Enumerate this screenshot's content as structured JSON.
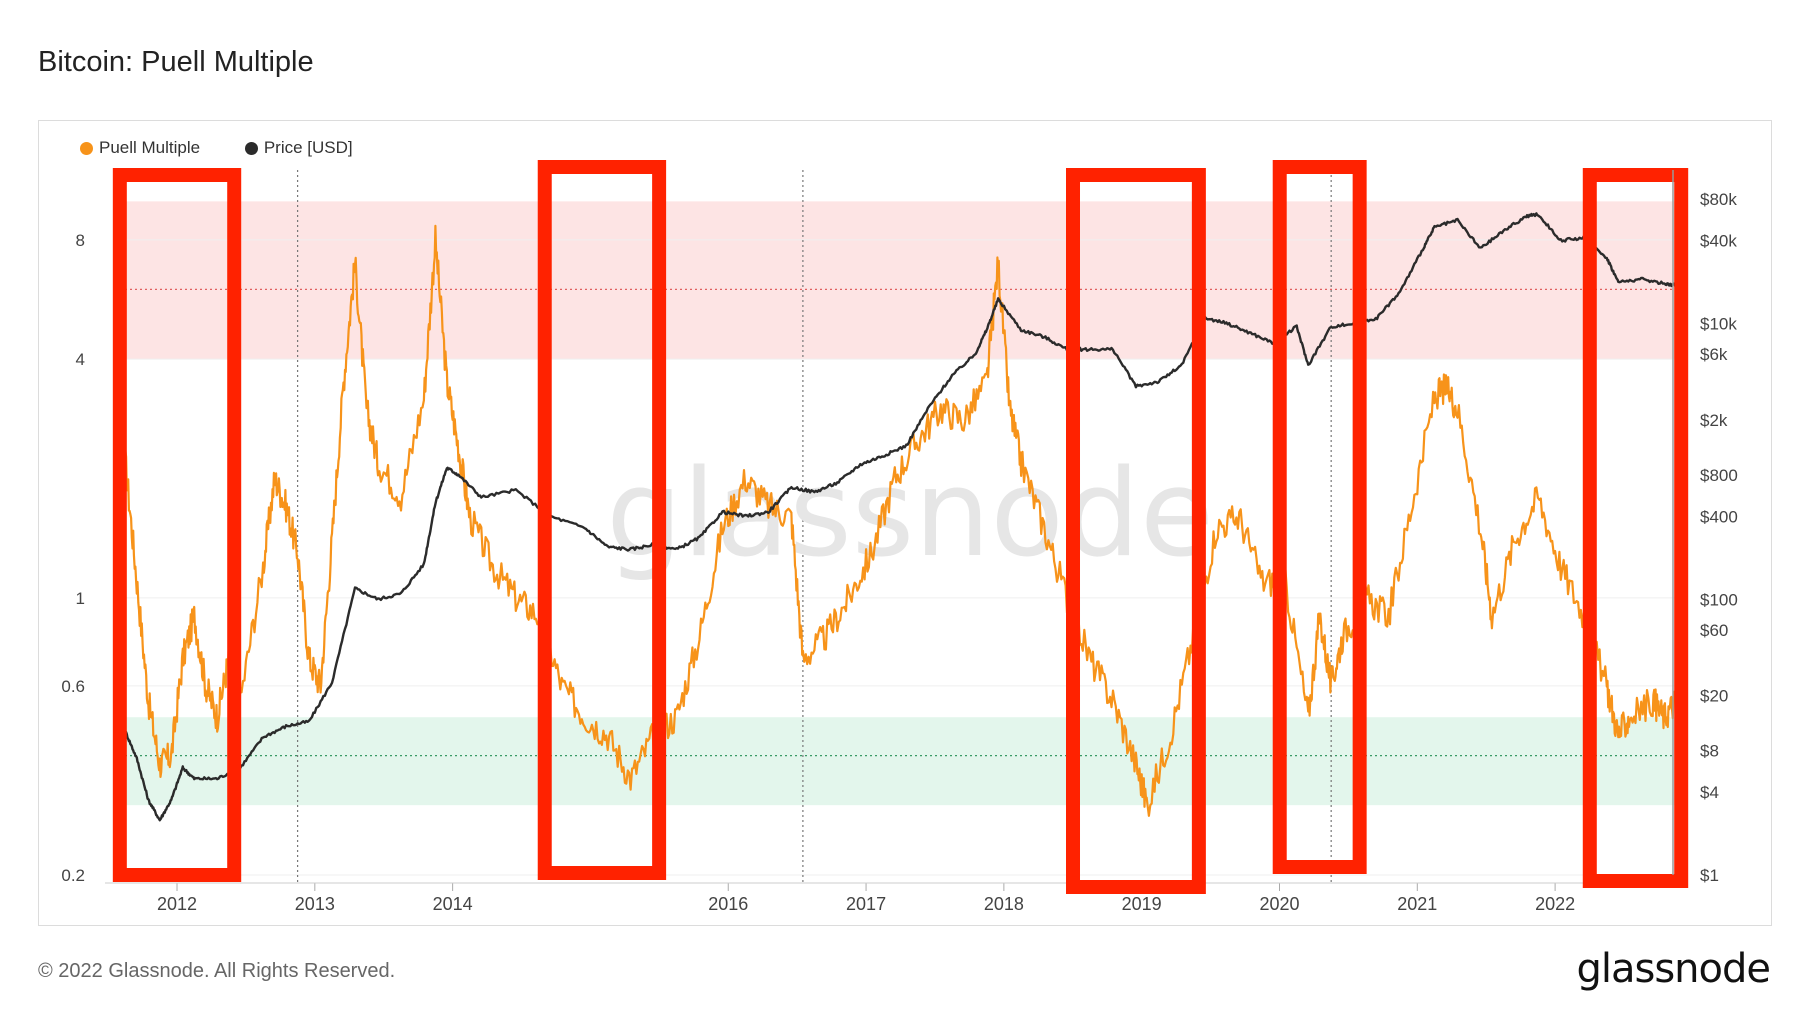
{
  "title": "Bitcoin: Puell Multiple",
  "footer": {
    "copyright": "© 2022 Glassnode. All Rights Reserved.",
    "logo": "glassnode"
  },
  "watermark": "glassnode",
  "colors": {
    "puell": "#f7931a",
    "price": "#2b2b2b",
    "highlight": "#ff2200",
    "red_band": "#fde4e4",
    "green_band": "#e3f6ec"
  },
  "chart_data": {
    "type": "line",
    "title": "Bitcoin: Puell Multiple",
    "x_ticks": [
      "2012",
      "2013",
      "2014",
      "2016",
      "2017",
      "2018",
      "2019",
      "2020",
      "2021",
      "2022"
    ],
    "y_left": {
      "scale": "log",
      "ticks": [
        "0.2",
        "0.6",
        "1",
        "4",
        "8"
      ],
      "values": [
        0.2,
        0.6,
        1,
        4,
        8
      ]
    },
    "y_right": {
      "scale": "log",
      "ticks": [
        "$1",
        "$4",
        "$8",
        "$20",
        "$60",
        "$100",
        "$400",
        "$800",
        "$2k",
        "$6k",
        "$10k",
        "$40k",
        "$80k"
      ],
      "values": [
        1,
        4,
        8,
        20,
        60,
        100,
        400,
        800,
        2000,
        6000,
        10000,
        40000,
        80000
      ]
    },
    "bands": [
      {
        "name": "high",
        "from": 4,
        "to": 10,
        "mid": 6
      },
      {
        "name": "low",
        "from": 0.3,
        "to": 0.5,
        "mid": 0.4
      }
    ],
    "series": [
      {
        "name": "Puell Multiple",
        "axis": "left",
        "x": [
          "2011-08",
          "2011-09",
          "2011-10",
          "2011-11",
          "2011-12",
          "2012-01",
          "2012-02",
          "2012-03",
          "2012-04",
          "2012-05",
          "2012-06",
          "2012-08",
          "2012-09",
          "2012-10",
          "2012-11",
          "2012-12",
          "2013-01",
          "2013-02",
          "2013-03",
          "2013-04",
          "2013-05",
          "2013-06",
          "2013-08",
          "2013-10",
          "2013-11",
          "2013-12",
          "2014-01",
          "2014-02",
          "2014-04",
          "2014-06",
          "2014-08",
          "2014-10",
          "2014-12",
          "2015-02",
          "2015-04",
          "2015-06",
          "2015-08",
          "2015-10",
          "2015-12",
          "2016-02",
          "2016-04",
          "2016-06",
          "2016-07",
          "2016-09",
          "2016-11",
          "2017-01",
          "2017-03",
          "2017-05",
          "2017-07",
          "2017-09",
          "2017-11",
          "2017-12",
          "2018-01",
          "2018-02",
          "2018-04",
          "2018-06",
          "2018-08",
          "2018-10",
          "2018-12",
          "2019-01",
          "2019-03",
          "2019-05",
          "2019-07",
          "2019-09",
          "2019-11",
          "2020-01",
          "2020-03",
          "2020-04",
          "2020-05",
          "2020-06",
          "2020-08",
          "2020-10",
          "2020-12",
          "2021-02",
          "2021-03",
          "2021-04",
          "2021-06",
          "2021-07",
          "2021-09",
          "2021-11",
          "2022-01",
          "2022-03",
          "2022-05",
          "2022-06",
          "2022-07",
          "2022-09",
          "2022-10",
          "2022-11"
        ],
        "values": [
          2.2,
          1.1,
          0.55,
          0.38,
          0.4,
          0.7,
          0.9,
          0.6,
          0.5,
          0.7,
          0.55,
          1.2,
          2.0,
          1.7,
          1.3,
          0.7,
          0.6,
          1.4,
          3.5,
          7.0,
          3.0,
          2.2,
          1.8,
          3.2,
          8.0,
          3.5,
          2.4,
          1.6,
          1.2,
          1.0,
          0.9,
          0.6,
          0.5,
          0.45,
          0.35,
          0.45,
          0.5,
          0.8,
          1.5,
          2.0,
          1.7,
          1.6,
          0.7,
          0.8,
          1.0,
          1.3,
          2.0,
          2.5,
          3.0,
          2.8,
          3.5,
          7.0,
          3.0,
          2.2,
          1.5,
          1.0,
          0.7,
          0.55,
          0.38,
          0.3,
          0.45,
          0.8,
          1.5,
          1.6,
          1.1,
          1.1,
          0.5,
          0.9,
          0.6,
          0.8,
          1.0,
          0.9,
          1.7,
          3.2,
          3.4,
          3.0,
          1.5,
          0.9,
          1.4,
          1.8,
          1.2,
          0.9,
          0.6,
          0.45,
          0.5,
          0.55,
          0.5,
          0.55
        ]
      },
      {
        "name": "Price [USD]",
        "axis": "right",
        "x": [
          "2011-08",
          "2011-09",
          "2011-10",
          "2011-11",
          "2011-12",
          "2012-01",
          "2012-02",
          "2012-04",
          "2012-06",
          "2012-08",
          "2012-10",
          "2012-12",
          "2013-02",
          "2013-04",
          "2013-06",
          "2013-08",
          "2013-10",
          "2013-11",
          "2013-12",
          "2014-01",
          "2014-03",
          "2014-06",
          "2014-09",
          "2014-12",
          "2015-02",
          "2015-04",
          "2015-06",
          "2015-08",
          "2015-10",
          "2015-12",
          "2016-02",
          "2016-04",
          "2016-06",
          "2016-08",
          "2016-10",
          "2016-12",
          "2017-02",
          "2017-04",
          "2017-06",
          "2017-08",
          "2017-10",
          "2017-11",
          "2017-12",
          "2018-02",
          "2018-04",
          "2018-06",
          "2018-08",
          "2018-10",
          "2018-12",
          "2019-02",
          "2019-04",
          "2019-06",
          "2019-08",
          "2019-10",
          "2019-12",
          "2020-02",
          "2020-03",
          "2020-05",
          "2020-07",
          "2020-09",
          "2020-11",
          "2021-01",
          "2021-02",
          "2021-04",
          "2021-06",
          "2021-08",
          "2021-10",
          "2021-11",
          "2022-01",
          "2022-03",
          "2022-05",
          "2022-06",
          "2022-08",
          "2022-10",
          "2022-11"
        ],
        "values": [
          11,
          7,
          3.5,
          2.5,
          3.5,
          6,
          5,
          5,
          6,
          10,
          12,
          13,
          25,
          120,
          100,
          110,
          180,
          500,
          900,
          800,
          550,
          620,
          400,
          330,
          240,
          230,
          250,
          230,
          280,
          430,
          400,
          430,
          650,
          600,
          700,
          950,
          1100,
          1300,
          2500,
          4200,
          6000,
          9000,
          15000,
          9000,
          8000,
          6500,
          6500,
          6500,
          3500,
          3800,
          5000,
          11000,
          10000,
          8500,
          7200,
          9500,
          5000,
          9500,
          10000,
          11000,
          17000,
          35000,
          50000,
          56000,
          35000,
          47000,
          60000,
          62000,
          40000,
          42000,
          30000,
          20000,
          21000,
          19500,
          19000
        ]
      }
    ],
    "highlight_boxes": [
      {
        "from": "2011-08",
        "to": "2012-05"
      },
      {
        "from": "2014-09",
        "to": "2015-06"
      },
      {
        "from": "2018-07",
        "to": "2019-05"
      },
      {
        "from": "2020-01",
        "to": "2020-07"
      },
      {
        "from": "2022-04",
        "to": "2022-11"
      }
    ],
    "legend": [
      "Puell Multiple",
      "Price [USD]"
    ],
    "legend_position": "top-left",
    "grid": true
  }
}
